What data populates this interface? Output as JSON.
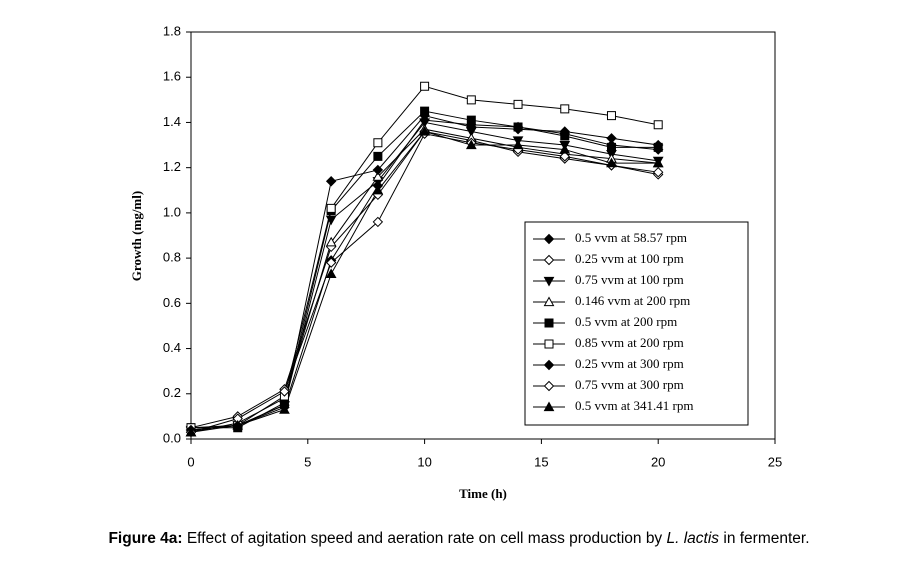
{
  "chart_data": {
    "type": "line",
    "x_label": "Time (h)",
    "y_label": "Growth (mg/ml)",
    "x": [
      0,
      2,
      4,
      6,
      8,
      10,
      12,
      14,
      16,
      18,
      20
    ],
    "xlim": [
      0,
      25
    ],
    "xticks": [
      0,
      5,
      10,
      15,
      20,
      25
    ],
    "ylim": [
      0,
      1.8
    ],
    "yticks": [
      {
        "value": 0,
        "label": "0.0"
      },
      0.2,
      0.4,
      0.6,
      0.8,
      {
        "value": 1,
        "label": "1.0"
      },
      1.2,
      1.4,
      1.6,
      1.8
    ],
    "legend": "lower-right",
    "series": [
      {
        "name": "0.5 vvm at 58.57 rpm",
        "color": "#000000",
        "marker": "diamond",
        "filled": true,
        "values": [
          0.04,
          0.06,
          0.14,
          0.79,
          1.12,
          1.41,
          1.39,
          1.38,
          1.35,
          1.3,
          1.28
        ]
      },
      {
        "name": "0.25 vvm at 100 rpm",
        "color": "#000000",
        "marker": "diamond",
        "filled": false,
        "values": [
          0.05,
          0.1,
          0.22,
          0.85,
          1.08,
          1.36,
          1.32,
          1.27,
          1.24,
          1.21,
          1.17
        ]
      },
      {
        "name": "0.75 vvm at 100 rpm",
        "color": "#000000",
        "marker": "triangle-down",
        "filled": true,
        "values": [
          0.04,
          0.06,
          0.15,
          0.97,
          1.14,
          1.4,
          1.36,
          1.32,
          1.3,
          1.26,
          1.23
        ]
      },
      {
        "name": "0.146 vvm at 200 rpm",
        "color": "#000000",
        "marker": "triangle-up",
        "filled": false,
        "values": [
          0.03,
          0.07,
          0.18,
          0.87,
          1.16,
          1.37,
          1.33,
          1.29,
          1.26,
          1.24,
          1.22
        ]
      },
      {
        "name": "0.5 vvm at 200 rpm",
        "color": "#000000",
        "marker": "square",
        "filled": true,
        "values": [
          0.05,
          0.05,
          0.16,
          1.01,
          1.25,
          1.45,
          1.41,
          1.38,
          1.34,
          1.29,
          1.29
        ]
      },
      {
        "name": "0.85 vvm at 200 rpm",
        "color": "#000000",
        "marker": "square",
        "filled": false,
        "values": [
          0.05,
          0.06,
          0.19,
          1.02,
          1.31,
          1.56,
          1.5,
          1.48,
          1.46,
          1.43,
          1.39
        ]
      },
      {
        "name": "0.25 vvm at 300 rpm",
        "color": "#000000",
        "marker": "diamond",
        "filled": true,
        "values": [
          0.04,
          0.06,
          0.15,
          1.14,
          1.19,
          1.43,
          1.38,
          1.37,
          1.36,
          1.33,
          1.3
        ]
      },
      {
        "name": "0.75 vvm at 300 rpm",
        "color": "#000000",
        "marker": "diamond",
        "filled": false,
        "values": [
          0.03,
          0.09,
          0.21,
          0.78,
          0.96,
          1.35,
          1.31,
          1.28,
          1.25,
          1.21,
          1.18
        ]
      },
      {
        "name": "0.5 vvm at 341.41 rpm",
        "color": "#000000",
        "marker": "triangle-up",
        "filled": true,
        "values": [
          0.03,
          0.06,
          0.13,
          0.73,
          1.1,
          1.36,
          1.3,
          1.3,
          1.28,
          1.22,
          1.22
        ]
      }
    ],
    "caption": {
      "label": "Figure 4a:",
      "text": " Effect of agitation speed and aeration rate on cell mass production by ",
      "species": "L. lactis",
      "end": " in fermenter."
    }
  }
}
